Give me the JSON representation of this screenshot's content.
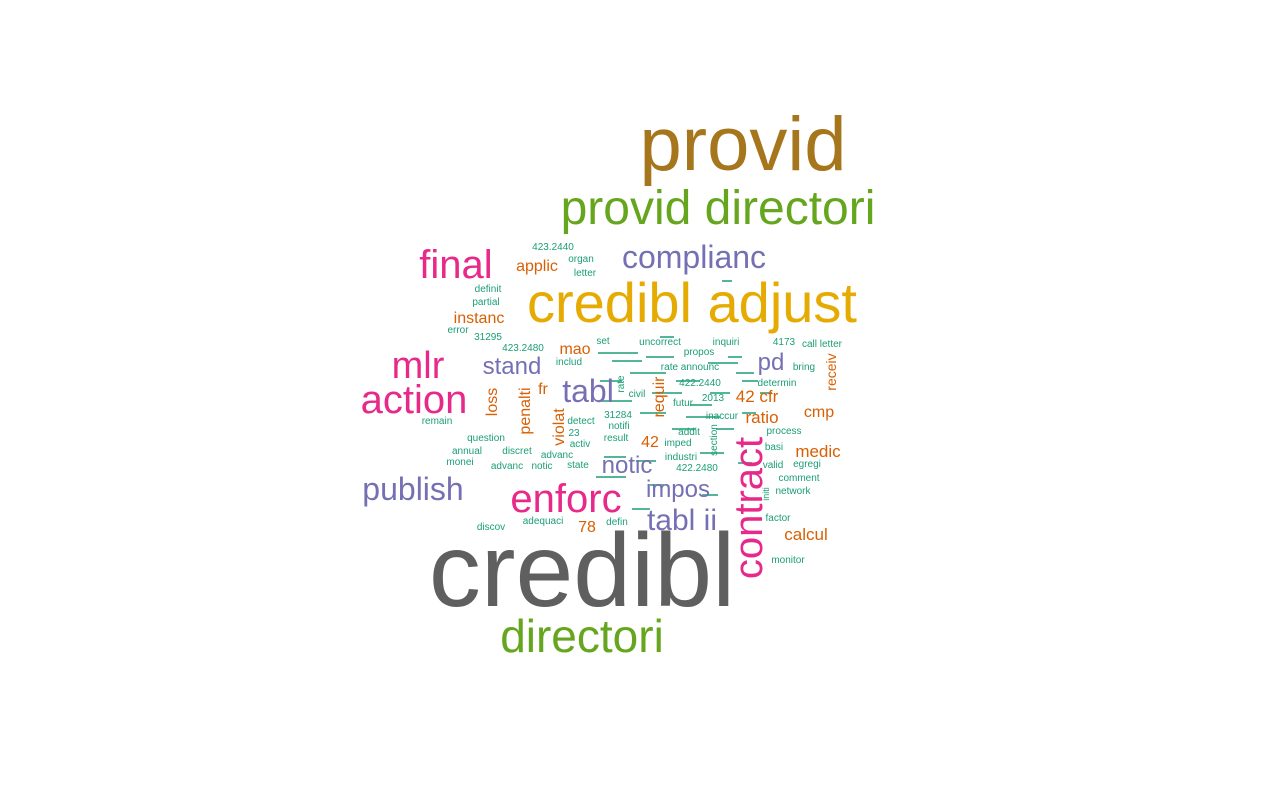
{
  "palette": {
    "gray": "#5f5f5f",
    "brown": "#a6761d",
    "green": "#66a61e",
    "magenta": "#e7298a",
    "gold": "#e6ab02",
    "purple": "#7570b3",
    "orange": "#d95f02",
    "teal": "#1b9e77"
  },
  "words": [
    {
      "text": "credibl",
      "color": "gray"
    },
    {
      "text": "provid",
      "color": "brown"
    },
    {
      "text": "credibl adjust",
      "color": "gold"
    },
    {
      "text": "provid directori",
      "color": "green"
    },
    {
      "text": "directori",
      "color": "green"
    },
    {
      "text": "contract",
      "color": "magenta"
    },
    {
      "text": "action",
      "color": "magenta"
    },
    {
      "text": "enforc",
      "color": "magenta"
    },
    {
      "text": "final",
      "color": "magenta"
    },
    {
      "text": "mlr",
      "color": "magenta"
    },
    {
      "text": "complianc",
      "color": "purple"
    },
    {
      "text": "publish",
      "color": "purple"
    },
    {
      "text": "tabl",
      "color": "purple"
    },
    {
      "text": "tabl ii",
      "color": "purple"
    },
    {
      "text": "notic",
      "color": "purple"
    },
    {
      "text": "impos",
      "color": "purple"
    },
    {
      "text": "stand",
      "color": "purple"
    },
    {
      "text": "pd",
      "color": "purple"
    },
    {
      "text": "calcul",
      "color": "orange"
    },
    {
      "text": "medic",
      "color": "orange"
    },
    {
      "text": "ratio",
      "color": "orange"
    },
    {
      "text": "42 cfr",
      "color": "orange"
    },
    {
      "text": "cmp",
      "color": "orange"
    },
    {
      "text": "instanc",
      "color": "orange"
    },
    {
      "text": "applic",
      "color": "orange"
    },
    {
      "text": "mao",
      "color": "orange"
    },
    {
      "text": "loss",
      "color": "orange"
    },
    {
      "text": "penalti",
      "color": "orange"
    },
    {
      "text": "violat",
      "color": "orange"
    },
    {
      "text": "fr",
      "color": "orange"
    },
    {
      "text": "requir",
      "color": "orange"
    },
    {
      "text": "42",
      "color": "orange"
    },
    {
      "text": "78",
      "color": "orange"
    },
    {
      "text": "receiv",
      "color": "orange"
    },
    {
      "text": "423.2440",
      "color": "teal"
    },
    {
      "text": "organ",
      "color": "teal"
    },
    {
      "text": "letter",
      "color": "teal"
    },
    {
      "text": "definit",
      "color": "teal"
    },
    {
      "text": "partial",
      "color": "teal"
    },
    {
      "text": "error",
      "color": "teal"
    },
    {
      "text": "31295",
      "color": "teal"
    },
    {
      "text": "423.2480",
      "color": "teal"
    },
    {
      "text": "includ",
      "color": "teal"
    },
    {
      "text": "set",
      "color": "teal"
    },
    {
      "text": "uncorrect",
      "color": "teal"
    },
    {
      "text": "inquiri",
      "color": "teal"
    },
    {
      "text": "4173",
      "color": "teal"
    },
    {
      "text": "call letter",
      "color": "teal"
    },
    {
      "text": "propos",
      "color": "teal"
    },
    {
      "text": "rate announc",
      "color": "teal"
    },
    {
      "text": "bring",
      "color": "teal"
    },
    {
      "text": "determin",
      "color": "teal"
    },
    {
      "text": "422.2440",
      "color": "teal"
    },
    {
      "text": "civil",
      "color": "teal"
    },
    {
      "text": "rate",
      "color": "teal"
    },
    {
      "text": "futur",
      "color": "teal"
    },
    {
      "text": "2013",
      "color": "teal"
    },
    {
      "text": "31284",
      "color": "teal"
    },
    {
      "text": "inaccur",
      "color": "teal"
    },
    {
      "text": "detect",
      "color": "teal"
    },
    {
      "text": "notifi",
      "color": "teal"
    },
    {
      "text": "remain",
      "color": "teal"
    },
    {
      "text": "23",
      "color": "teal"
    },
    {
      "text": "activ",
      "color": "teal"
    },
    {
      "text": "result",
      "color": "teal"
    },
    {
      "text": "addit",
      "color": "teal"
    },
    {
      "text": "process",
      "color": "teal"
    },
    {
      "text": "question",
      "color": "teal"
    },
    {
      "text": "imped",
      "color": "teal"
    },
    {
      "text": "section",
      "color": "teal"
    },
    {
      "text": "basi",
      "color": "teal"
    },
    {
      "text": "annual",
      "color": "teal"
    },
    {
      "text": "discret",
      "color": "teal"
    },
    {
      "text": "advanc",
      "color": "teal"
    },
    {
      "text": "industri",
      "color": "teal"
    },
    {
      "text": "monei",
      "color": "teal"
    },
    {
      "text": "advanc",
      "color": "teal"
    },
    {
      "text": "notic",
      "color": "teal"
    },
    {
      "text": "state",
      "color": "teal"
    },
    {
      "text": "422.2480",
      "color": "teal"
    },
    {
      "text": "valid",
      "color": "teal"
    },
    {
      "text": "egregi",
      "color": "teal"
    },
    {
      "text": "comment",
      "color": "teal"
    },
    {
      "text": "initi",
      "color": "teal"
    },
    {
      "text": "network",
      "color": "teal"
    },
    {
      "text": "discov",
      "color": "teal"
    },
    {
      "text": "adequaci",
      "color": "teal"
    },
    {
      "text": "defin",
      "color": "teal"
    },
    {
      "text": "factor",
      "color": "teal"
    },
    {
      "text": "monitor",
      "color": "teal"
    }
  ]
}
